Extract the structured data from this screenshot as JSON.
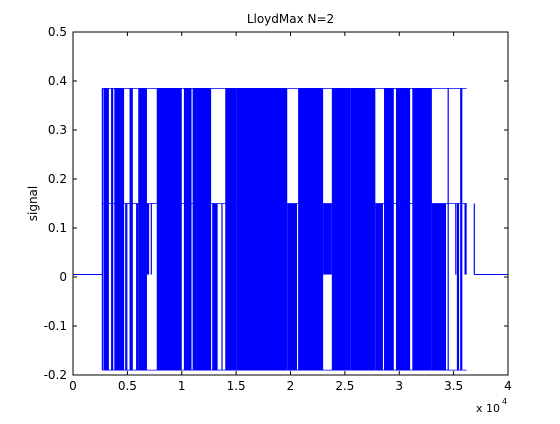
{
  "chart_data": {
    "type": "line",
    "title": "LloydMax  N=2",
    "xlabel": "",
    "ylabel": "signal",
    "x_exponent_label": "x 10",
    "x_exponent": "4",
    "xlim": [
      0,
      4
    ],
    "ylim": [
      -0.2,
      0.5
    ],
    "xticks": [
      0,
      0.5,
      1,
      1.5,
      2,
      2.5,
      3,
      3.5,
      4
    ],
    "xtick_labels": [
      "0",
      "0.5",
      "1",
      "1.5",
      "2",
      "2.5",
      "3",
      "3.5",
      "4"
    ],
    "yticks": [
      -0.2,
      -0.1,
      0,
      0.1,
      0.2,
      0.3,
      0.4,
      0.5
    ],
    "ytick_labels": [
      "-0.2",
      "-0.1",
      "0",
      "0.1",
      "0.2",
      "0.3",
      "0.4",
      "0.5"
    ],
    "grid": false,
    "line_color": "#0000ff",
    "quantization_levels": [
      -0.19,
      0.15,
      0.385
    ],
    "baseline_value": 0.005,
    "series": [
      {
        "x": [
          0,
          0.27,
          0.27,
          3.69,
          3.69,
          4
        ],
        "y": [
          0.005,
          0.005,
          -0.19,
          0.385,
          0.15,
          0.005
        ]
      }
    ],
    "dense_segments": [
      {
        "x": [
          0.28,
          0.33
        ],
        "ymin": -0.19,
        "ymax": 0.385
      },
      {
        "x": [
          0.35,
          0.37
        ],
        "ymin": -0.19,
        "ymax": 0.385
      },
      {
        "x": [
          0.38,
          0.47
        ],
        "ymin": -0.19,
        "ymax": 0.385
      },
      {
        "x": [
          0.48,
          0.5
        ],
        "ymin": -0.19,
        "ymax": 0.15
      },
      {
        "x": [
          0.52,
          0.55
        ],
        "ymin": -0.19,
        "ymax": 0.385
      },
      {
        "x": [
          0.58,
          0.6
        ],
        "ymin": -0.19,
        "ymax": 0.15
      },
      {
        "x": [
          0.6,
          0.68
        ],
        "ymin": -0.19,
        "ymax": 0.385
      },
      {
        "x": [
          0.68,
          0.7
        ],
        "ymin": 0.005,
        "ymax": 0.15
      },
      {
        "x": [
          0.77,
          1.0
        ],
        "ymin": -0.19,
        "ymax": 0.385
      },
      {
        "x": [
          1.02,
          1.09
        ],
        "ymin": -0.19,
        "ymax": 0.385
      },
      {
        "x": [
          1.1,
          1.2
        ],
        "ymin": -0.19,
        "ymax": 0.385
      },
      {
        "x": [
          1.2,
          1.27
        ],
        "ymin": -0.19,
        "ymax": 0.385
      },
      {
        "x": [
          1.28,
          1.33
        ],
        "ymin": -0.19,
        "ymax": 0.15
      },
      {
        "x": [
          1.4,
          1.5
        ],
        "ymin": -0.19,
        "ymax": 0.385
      },
      {
        "x": [
          1.5,
          1.97
        ],
        "ymin": -0.19,
        "ymax": 0.385
      },
      {
        "x": [
          1.97,
          2.06
        ],
        "ymin": -0.19,
        "ymax": 0.15
      },
      {
        "x": [
          2.07,
          2.3
        ],
        "ymin": -0.19,
        "ymax": 0.385
      },
      {
        "x": [
          2.3,
          2.38
        ],
        "ymin": 0.005,
        "ymax": 0.15
      },
      {
        "x": [
          2.38,
          2.55
        ],
        "ymin": -0.19,
        "ymax": 0.385
      },
      {
        "x": [
          2.55,
          2.78
        ],
        "ymin": -0.19,
        "ymax": 0.385
      },
      {
        "x": [
          2.78,
          2.85
        ],
        "ymin": -0.19,
        "ymax": 0.15
      },
      {
        "x": [
          2.86,
          2.95
        ],
        "ymin": -0.19,
        "ymax": 0.385
      },
      {
        "x": [
          2.97,
          3.1
        ],
        "ymin": -0.19,
        "ymax": 0.385
      },
      {
        "x": [
          3.12,
          3.3
        ],
        "ymin": -0.19,
        "ymax": 0.385
      },
      {
        "x": [
          3.3,
          3.43
        ],
        "ymin": -0.19,
        "ymax": 0.15
      },
      {
        "x": [
          3.53,
          3.55
        ],
        "ymin": -0.19,
        "ymax": 0.15
      },
      {
        "x": [
          3.56,
          3.58
        ],
        "ymin": -0.19,
        "ymax": 0.385
      },
      {
        "x": [
          3.6,
          3.62
        ],
        "ymin": 0.005,
        "ymax": 0.15
      }
    ],
    "gaps": [
      [
        0.7,
        0.77
      ],
      [
        1.33,
        1.4
      ],
      [
        3.43,
        3.52
      ],
      [
        3.62,
        3.69
      ]
    ]
  }
}
